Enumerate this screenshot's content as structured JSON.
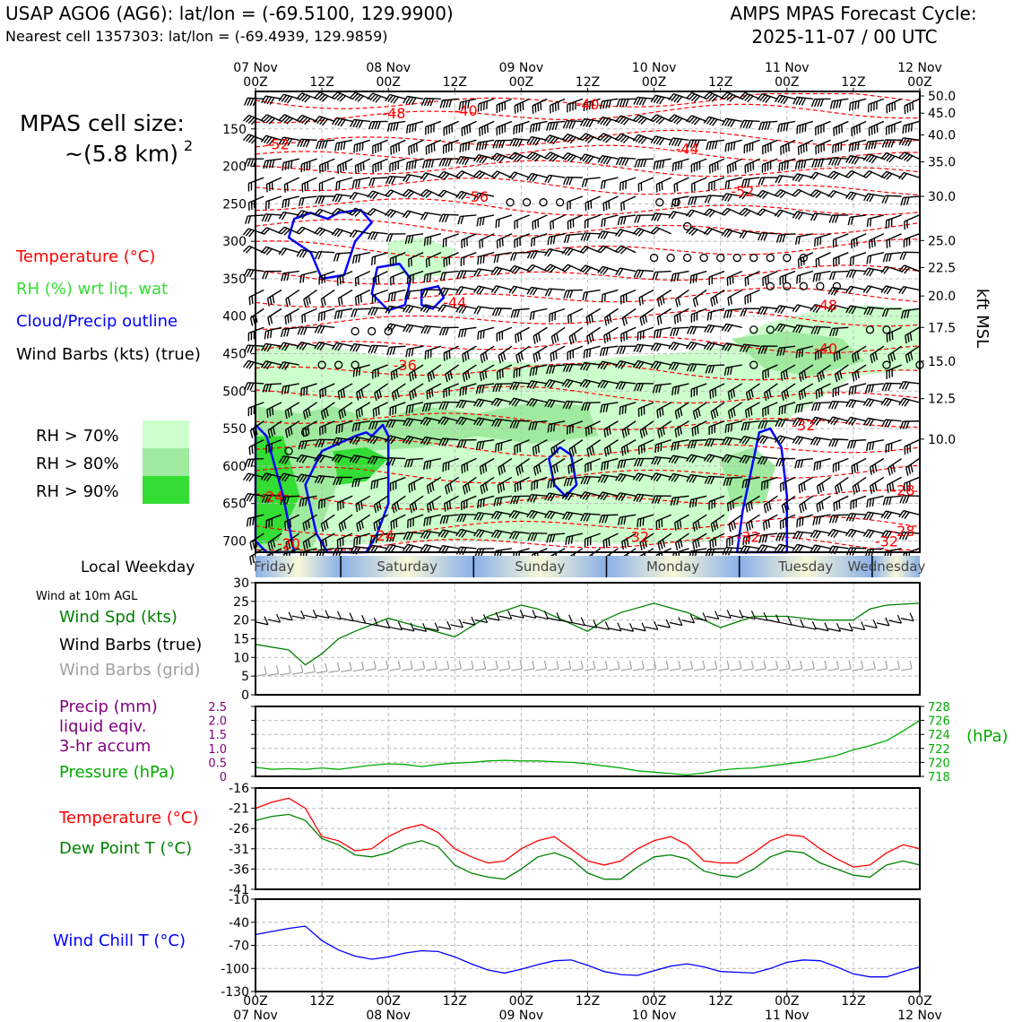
{
  "header": {
    "station_title": "USAP AGO6 (AG6): lat/lon = (-69.5100, 129.9900)",
    "nearest_cell": "Nearest cell 1357303: lat/lon = (-69.4939, 129.9859)",
    "model_title": "AMPS MPAS Forecast Cycle:",
    "cycle": "2025-11-07 / 00 UTC"
  },
  "cell_size": {
    "label": "MPAS cell size:",
    "value": "~(5.8 km)",
    "exponent": "2"
  },
  "colors": {
    "temperature": "#ff0000",
    "rh": "#33dd33",
    "cloud": "#0000ff",
    "wind": "#000000",
    "wind_grid": "#a0a0a0",
    "precip": "#800080",
    "pressure": "#00aa00",
    "dewpoint": "#008000",
    "windchill": "#0000ff",
    "rh70": "#ccffcc",
    "rh80": "#a0eaa0",
    "rh90": "#33dd33"
  },
  "legend_main": {
    "temperature": "Temperature (°C)",
    "rh": "RH (%) wrt liq. wat",
    "cloud": "Cloud/Precip outline",
    "wind": "Wind Barbs (kts) (true)",
    "rh70": "RH > 70%",
    "rh80": "RH > 80%",
    "rh90": "RH > 90%"
  },
  "time_axis": {
    "top_ticks": [
      {
        "top": "07 Nov",
        "bottom": "00Z"
      },
      {
        "top": "",
        "bottom": "12Z"
      },
      {
        "top": "08 Nov",
        "bottom": "00Z"
      },
      {
        "top": "",
        "bottom": "12Z"
      },
      {
        "top": "09 Nov",
        "bottom": "00Z"
      },
      {
        "top": "",
        "bottom": "12Z"
      },
      {
        "top": "10 Nov",
        "bottom": "00Z"
      },
      {
        "top": "",
        "bottom": "12Z"
      },
      {
        "top": "11 Nov",
        "bottom": "00Z"
      },
      {
        "top": "",
        "bottom": "12Z"
      },
      {
        "top": "12 Nov",
        "bottom": "00Z"
      }
    ],
    "bottom_ticks": [
      {
        "top": "00Z",
        "bottom": "07 Nov"
      },
      {
        "top": "12Z",
        "bottom": ""
      },
      {
        "top": "00Z",
        "bottom": "08 Nov"
      },
      {
        "top": "12Z",
        "bottom": ""
      },
      {
        "top": "00Z",
        "bottom": "09 Nov"
      },
      {
        "top": "12Z",
        "bottom": ""
      },
      {
        "top": "00Z",
        "bottom": "10 Nov"
      },
      {
        "top": "12Z",
        "bottom": ""
      },
      {
        "top": "00Z",
        "bottom": "11 Nov"
      },
      {
        "top": "12Z",
        "bottom": ""
      },
      {
        "top": "00Z",
        "bottom": "12 Nov"
      }
    ]
  },
  "weekday": {
    "label": "Local Weekday",
    "days": [
      "Friday",
      "Saturday",
      "Sunday",
      "Monday",
      "Tuesday",
      "Wednesday"
    ]
  },
  "chart_data": [
    {
      "type": "heatmap",
      "name": "upper-air cross section",
      "x_hours": [
        0,
        120
      ],
      "y_pressure_hpa": [
        100,
        715
      ],
      "y_ticks": [
        150,
        200,
        250,
        300,
        350,
        400,
        450,
        500,
        550,
        600,
        650,
        700
      ],
      "right_axis_label": "kft MSL",
      "right_ticks": [
        "50.0",
        "45.0",
        "40.0",
        "35.0",
        "30.0",
        "25.0",
        "22.5",
        "20.0",
        "17.5",
        "15.0",
        "12.5",
        "10.0"
      ],
      "right_tick_pressure": [
        106,
        129,
        158,
        194,
        240,
        299,
        335,
        373,
        415,
        460,
        510,
        564
      ],
      "temperature_labels": [
        {
          "t": "-48",
          "h": 25,
          "p": 129
        },
        {
          "t": "-40",
          "h": 38,
          "p": 125
        },
        {
          "t": "-40",
          "h": 60,
          "p": 117
        },
        {
          "t": "-52",
          "h": 4,
          "p": 170
        },
        {
          "t": "-44",
          "h": 78,
          "p": 176
        },
        {
          "t": "-56",
          "h": 40,
          "p": 240
        },
        {
          "t": "-52",
          "h": 88,
          "p": 233
        },
        {
          "t": "-44",
          "h": 36,
          "p": 381
        },
        {
          "t": "-48",
          "h": 103,
          "p": 385
        },
        {
          "t": "-40",
          "h": 103,
          "p": 443
        },
        {
          "t": "-36",
          "h": 27,
          "p": 465
        },
        {
          "t": "-32",
          "h": 99,
          "p": 545
        },
        {
          "t": "-28",
          "h": 117,
          "p": 632
        },
        {
          "t": "-24",
          "h": 3,
          "p": 640
        },
        {
          "t": "-28",
          "h": 117,
          "p": 686
        },
        {
          "t": "-20",
          "h": 6,
          "p": 703
        },
        {
          "t": "-24",
          "h": 23,
          "p": 692
        },
        {
          "t": "-32",
          "h": 69,
          "p": 694
        },
        {
          "t": "-32",
          "h": 89,
          "p": 694
        },
        {
          "t": "-32",
          "h": 114,
          "p": 700
        }
      ]
    },
    {
      "type": "line",
      "name": "Wind at 10m AGL",
      "label": "Wind at 10m AGL",
      "legend": [
        "Wind Spd (kts)",
        "Wind Barbs (true)",
        "Wind Barbs (grid)"
      ],
      "y_ticks": [
        0,
        5,
        10,
        15,
        20,
        25,
        30
      ],
      "ylim": [
        0,
        30
      ],
      "x_hours": [
        0,
        6,
        9,
        12,
        15,
        18,
        24,
        30,
        36,
        42,
        48,
        51,
        54,
        60,
        63,
        66,
        72,
        78,
        84,
        90,
        96,
        102,
        108,
        111,
        114,
        120
      ],
      "wind_speed": [
        13.5,
        12,
        8,
        11,
        15,
        17,
        20.5,
        18,
        15.5,
        21,
        24,
        23,
        21,
        17,
        20,
        22,
        24.5,
        22,
        18,
        21,
        21,
        20,
        20,
        23,
        24,
        24.5
      ]
    },
    {
      "type": "line",
      "name": "Precip and Pressure",
      "legend": [
        "Precip (mm)",
        "liquid eqiv.",
        "3-hr accum",
        "Pressure (hPa)"
      ],
      "left_ticks": [
        "0",
        "0.5",
        "1.0",
        "1.5",
        "2.0",
        "2.5"
      ],
      "right_ticks": [
        "718",
        "720",
        "722",
        "724",
        "726",
        "728"
      ],
      "right_unit": "(hPa)",
      "ylim_pressure": [
        718,
        728
      ],
      "x_hours": [
        0,
        3,
        6,
        9,
        12,
        15,
        18,
        21,
        24,
        27,
        30,
        33,
        36,
        39,
        42,
        45,
        48,
        51,
        54,
        57,
        60,
        63,
        66,
        69,
        72,
        75,
        78,
        81,
        84,
        87,
        90,
        93,
        96,
        99,
        102,
        105,
        108,
        111,
        114,
        117,
        120
      ],
      "pressure": [
        719.3,
        719.0,
        719.1,
        719.0,
        719.2,
        719.0,
        719.3,
        719.6,
        719.8,
        719.7,
        719.4,
        719.7,
        719.9,
        720.0,
        720.2,
        720.3,
        720.2,
        720.2,
        720.1,
        720.0,
        719.8,
        719.5,
        719.2,
        718.8,
        718.6,
        718.4,
        718.2,
        718.5,
        718.9,
        719.1,
        719.2,
        719.5,
        719.8,
        720.1,
        720.5,
        721.0,
        721.8,
        722.4,
        723.1,
        724.5,
        726.0
      ]
    },
    {
      "type": "line",
      "name": "Temperature and Dew Point",
      "legend": [
        "Temperature (°C)",
        "Dew Point T (°C)"
      ],
      "y_ticks": [
        -16,
        -21,
        -26,
        -31,
        -36,
        -41
      ],
      "ylim": [
        -41,
        -16
      ],
      "x_hours": [
        0,
        3,
        6,
        9,
        12,
        15,
        18,
        21,
        24,
        27,
        30,
        33,
        36,
        39,
        42,
        45,
        48,
        51,
        54,
        57,
        60,
        63,
        66,
        69,
        72,
        75,
        78,
        81,
        84,
        87,
        90,
        93,
        96,
        99,
        102,
        105,
        108,
        111,
        114,
        117,
        120
      ],
      "temperature": [
        -21,
        -19.5,
        -18.5,
        -21,
        -28,
        -29,
        -31.5,
        -31,
        -28,
        -26,
        -25,
        -27,
        -31,
        -33,
        -34.5,
        -34,
        -31,
        -29,
        -28,
        -31,
        -34,
        -35,
        -34,
        -31,
        -29,
        -28,
        -30,
        -34,
        -34.5,
        -34.5,
        -32,
        -29,
        -27.5,
        -28,
        -31,
        -33.5,
        -35.5,
        -35,
        -32,
        -30,
        -31
      ],
      "dewpoint": [
        -24,
        -23,
        -22.5,
        -24,
        -28.5,
        -30,
        -32.5,
        -33,
        -32,
        -30,
        -29,
        -30.5,
        -35,
        -37,
        -38,
        -38.5,
        -36,
        -33,
        -32,
        -33.5,
        -37,
        -38.5,
        -38.5,
        -35.5,
        -33,
        -32.5,
        -33.5,
        -36.5,
        -37.5,
        -38,
        -36,
        -33,
        -31.5,
        -32,
        -34.5,
        -36,
        -37.5,
        -38,
        -35,
        -34,
        -35
      ]
    },
    {
      "type": "line",
      "name": "Wind Chill",
      "legend": [
        "Wind Chill T (°C)"
      ],
      "y_ticks": [
        -10,
        -40,
        -70,
        -100,
        -130
      ],
      "ylim": [
        -130,
        -10
      ],
      "x_hours": [
        0,
        3,
        6,
        9,
        12,
        15,
        18,
        21,
        24,
        27,
        30,
        33,
        36,
        39,
        42,
        45,
        48,
        51,
        54,
        57,
        60,
        63,
        66,
        69,
        72,
        75,
        78,
        81,
        84,
        87,
        90,
        93,
        96,
        99,
        102,
        105,
        108,
        111,
        114,
        117,
        120
      ],
      "windchill": [
        -56,
        -52,
        -48,
        -45,
        -64,
        -76,
        -84,
        -88,
        -85,
        -80,
        -77,
        -78,
        -85,
        -94,
        -102,
        -106,
        -101,
        -95,
        -90,
        -89,
        -96,
        -104,
        -108,
        -109,
        -103,
        -97,
        -94,
        -98,
        -104,
        -105,
        -106,
        -100,
        -92,
        -89,
        -90,
        -98,
        -107,
        -111,
        -111,
        -104,
        -98
      ]
    }
  ]
}
